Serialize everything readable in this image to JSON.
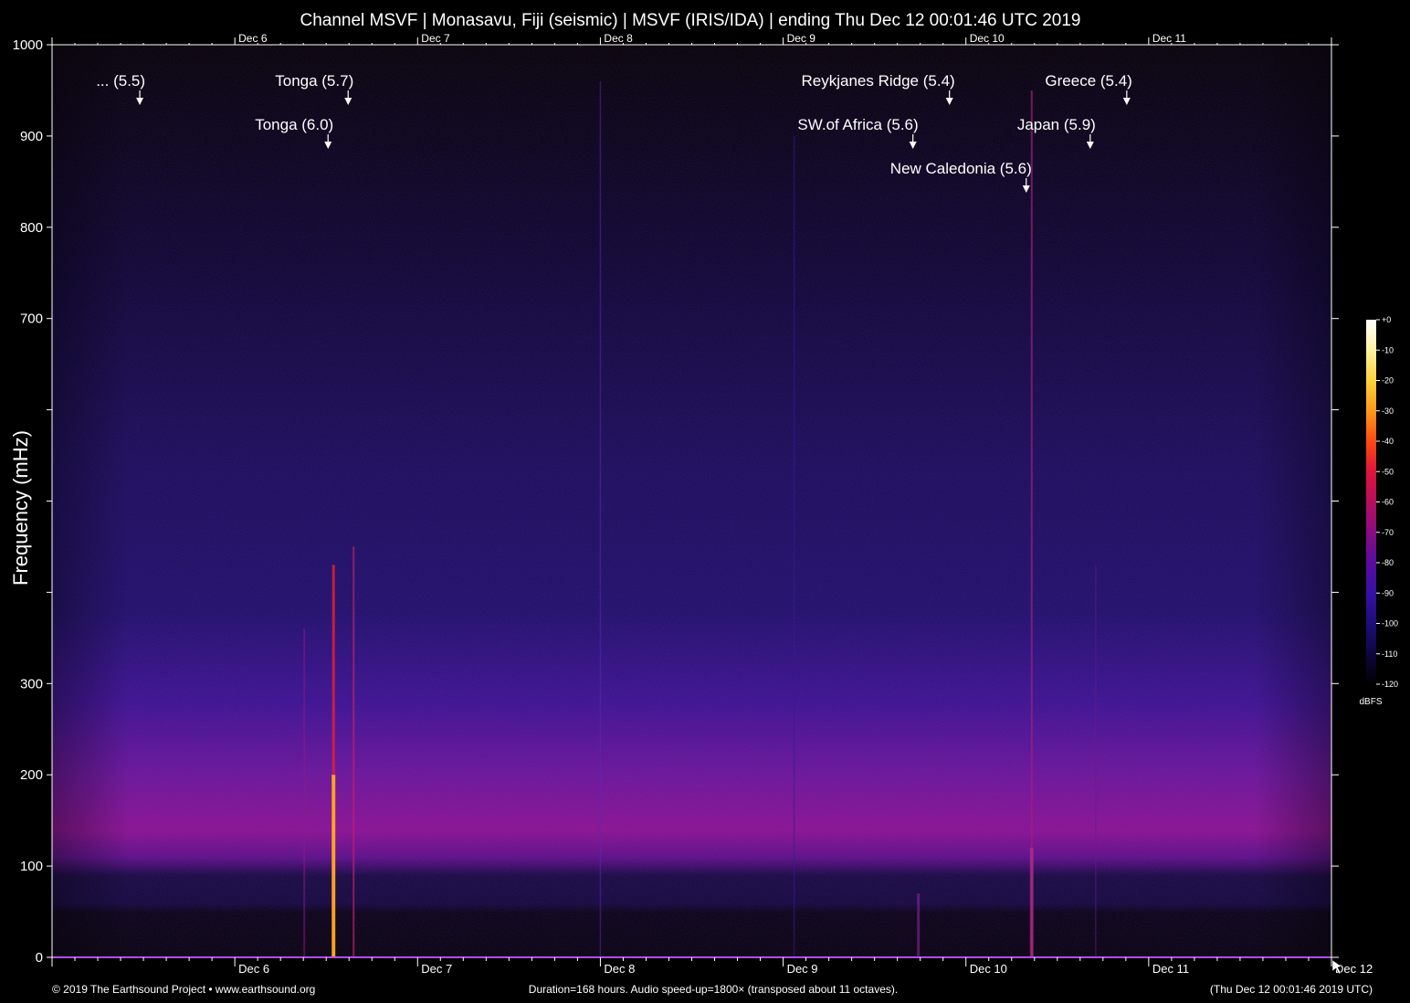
{
  "chart_data": {
    "type": "heatmap",
    "title": "Channel MSVF | Monasavu, Fiji (seismic) | MSVF (IRIS/IDA) | ending Thu Dec 12 00:01:46 UTC 2019",
    "ylabel": "Frequency (mHz)",
    "ylim": [
      0,
      1000
    ],
    "y_ticks": [
      {
        "v": 0,
        "label": "0"
      },
      {
        "v": 100,
        "label": "100"
      },
      {
        "v": 200,
        "label": "200"
      },
      {
        "v": 300,
        "label": "300"
      },
      {
        "v": 400,
        "label": ""
      },
      {
        "v": 500,
        "label": ""
      },
      {
        "v": 600,
        "label": ""
      },
      {
        "v": 700,
        "label": "700"
      },
      {
        "v": 800,
        "label": "800"
      },
      {
        "v": 900,
        "label": "900"
      },
      {
        "v": 1000,
        "label": "1000"
      }
    ],
    "x_range_days": [
      5.0,
      12.0
    ],
    "x_ticks": [
      {
        "day": 6,
        "label": "Dec 6"
      },
      {
        "day": 7,
        "label": "Dec 7"
      },
      {
        "day": 8,
        "label": "Dec 8"
      },
      {
        "day": 9,
        "label": "Dec 9"
      },
      {
        "day": 10,
        "label": "Dec 10"
      },
      {
        "day": 11,
        "label": "Dec 11"
      },
      {
        "day": 12,
        "label": "Dec 12"
      }
    ],
    "events": [
      {
        "label": "... (5.5)",
        "day": 5.51,
        "row": 0
      },
      {
        "label": "Tonga (5.7)",
        "day": 6.65,
        "row": 0
      },
      {
        "label": "Tonga (6.0)",
        "day": 6.54,
        "row": 1
      },
      {
        "label": "Reykjanes Ridge (5.4)",
        "day": 9.94,
        "row": 0
      },
      {
        "label": "SW.of Africa (5.6)",
        "day": 9.74,
        "row": 1
      },
      {
        "label": "New Caledonia (5.6)",
        "day": 10.36,
        "row": 2
      },
      {
        "label": "Japan (5.9)",
        "day": 10.71,
        "row": 1
      },
      {
        "label": "Greece (5.4)",
        "day": 10.91,
        "row": 0
      }
    ],
    "colorbar": {
      "unit": "dBFS",
      "range": [
        -120,
        0
      ],
      "ticks": [
        "+0",
        "-10",
        "-20",
        "-30",
        "-40",
        "-50",
        "-60",
        "-70",
        "-80",
        "-90",
        "-100",
        "-110",
        "-120"
      ],
      "colors": [
        "#ffffff",
        "#fff2a0",
        "#ffd33a",
        "#ff9a1a",
        "#ff4a12",
        "#e0143a",
        "#b80e5e",
        "#8a0c82",
        "#5a0ba0",
        "#3610a6",
        "#1d0e7a",
        "#0e0640",
        "#000000"
      ]
    },
    "grid": false
  },
  "footer": {
    "left": "© 2019 The Earthsound Project • www.earthsound.org",
    "center": "Duration=168 hours. Audio speed-up=1800× (transposed about 11 octaves).",
    "right": "(Thu Dec 12 00:01:46 2019 UTC)"
  },
  "colors": {
    "background": "#000000",
    "text": "#ffffff",
    "axis": "#ffffff",
    "baseline": "#b04cff"
  }
}
